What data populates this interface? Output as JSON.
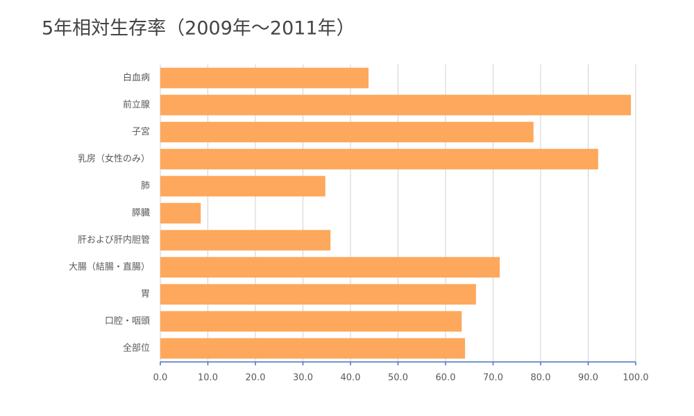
{
  "chart_data": {
    "type": "bar",
    "orientation": "horizontal",
    "title": "5年相対生存率（2009年～2011年）",
    "categories": [
      "白血病",
      "前立腺",
      "子宮",
      "乳房（女性のみ）",
      "肺",
      "膵臓",
      "肝および肝内胆管",
      "大腸（結腸・直腸）",
      "胃",
      "口腔・咽頭",
      "全部位"
    ],
    "values": [
      43.8,
      99.0,
      78.5,
      92.1,
      34.7,
      8.5,
      35.8,
      71.4,
      66.4,
      63.4,
      64.1
    ],
    "color": "#fda85c",
    "xlim": [
      0,
      100
    ],
    "xticks": [
      {
        "value": 0,
        "label": "0.0"
      },
      {
        "value": 10,
        "label": "10.0"
      },
      {
        "value": 20,
        "label": "20.0"
      },
      {
        "value": 30,
        "label": "30.0"
      },
      {
        "value": 40,
        "label": "40.0"
      },
      {
        "value": 50,
        "label": "50.0"
      },
      {
        "value": 60,
        "label": "60.0"
      },
      {
        "value": 70,
        "label": "70.0"
      },
      {
        "value": 80,
        "label": "80.0"
      },
      {
        "value": 90,
        "label": "90.0"
      },
      {
        "value": 100,
        "label": "100.0"
      }
    ],
    "grid": true
  }
}
